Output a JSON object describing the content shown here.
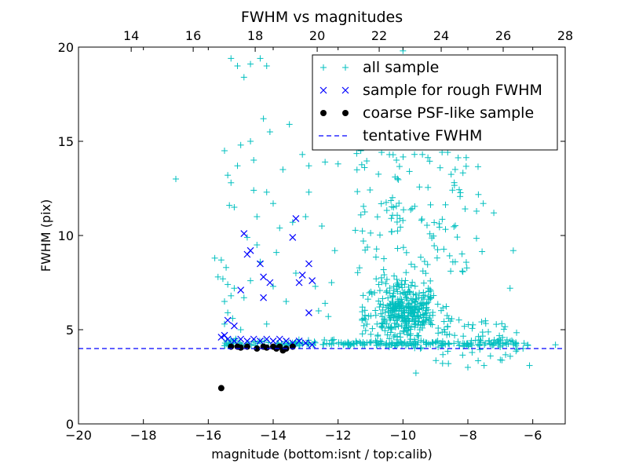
{
  "chart_data": {
    "type": "scatter",
    "title": "FWHM vs magnitudes",
    "xlabel": "magnitude (bottom:isnt / top:calib)",
    "ylabel": "FWHM (pix)",
    "xlim": [
      -20,
      -5
    ],
    "ylim": [
      0,
      20
    ],
    "top_xlim": [
      12.3,
      28
    ],
    "xticks": [
      -20,
      -18,
      -16,
      -14,
      -12,
      -10,
      -8,
      -6
    ],
    "xtick_labels": [
      "−20",
      "−18",
      "−16",
      "−14",
      "−12",
      "−10",
      "−8",
      "−6"
    ],
    "yticks": [
      0,
      5,
      10,
      15,
      20
    ],
    "ytick_labels": [
      "0",
      "5",
      "10",
      "15",
      "20"
    ],
    "top_xticks": [
      14,
      16,
      18,
      20,
      22,
      24,
      26,
      28
    ],
    "top_xtick_labels": [
      "14",
      "16",
      "18",
      "20",
      "22",
      "24",
      "26",
      "28"
    ],
    "grid": false,
    "legend_position": "top-right",
    "colors": {
      "all_sample": "#00BFBF",
      "rough_sample": "#0000FF",
      "psf_sample": "#000000",
      "tentative_line": "#0000FF"
    },
    "series": [
      {
        "name": "all sample",
        "marker": "plus",
        "points": [
          [
            -17.0,
            13.0
          ],
          [
            -15.8,
            8.8
          ],
          [
            -15.7,
            7.8
          ],
          [
            -15.6,
            8.7
          ],
          [
            -15.55,
            7.7
          ],
          [
            -15.5,
            6.5
          ],
          [
            -15.5,
            5.3
          ],
          [
            -15.45,
            8.3
          ],
          [
            -15.4,
            7.4
          ],
          [
            -15.4,
            5.9
          ],
          [
            -15.35,
            11.6
          ],
          [
            -15.3,
            6.8
          ],
          [
            -15.3,
            12.8
          ],
          [
            -15.25,
            5.6
          ],
          [
            -15.2,
            7.2
          ],
          [
            -15.2,
            11.5
          ],
          [
            -15.5,
            14.5
          ],
          [
            -15.4,
            13.2
          ],
          [
            -15.1,
            13.7
          ],
          [
            -15.0,
            5.0
          ],
          [
            -15.0,
            14.8
          ],
          [
            -14.9,
            6.7
          ],
          [
            -14.8,
            9.9
          ],
          [
            -14.7,
            15.0
          ],
          [
            -14.7,
            7.6
          ],
          [
            -14.6,
            14.0
          ],
          [
            -14.6,
            12.4
          ],
          [
            -14.5,
            11.0
          ],
          [
            -14.5,
            9.5
          ],
          [
            -14.4,
            8.6
          ],
          [
            -14.3,
            16.2
          ],
          [
            -14.2,
            5.3
          ],
          [
            -14.2,
            12.3
          ],
          [
            -14.1,
            15.5
          ],
          [
            -14.0,
            7.3
          ],
          [
            -14.0,
            11.7
          ],
          [
            -13.9,
            9.1
          ],
          [
            -13.8,
            10.4
          ],
          [
            -13.7,
            13.5
          ],
          [
            -13.6,
            6.5
          ],
          [
            -13.5,
            15.9
          ],
          [
            -13.4,
            10.7
          ],
          [
            -13.3,
            8.0
          ],
          [
            -13.1,
            14.3
          ],
          [
            -13.0,
            11.0
          ],
          [
            -12.9,
            12.3
          ],
          [
            -12.9,
            13.7
          ],
          [
            -12.7,
            7.3
          ],
          [
            -12.6,
            6.0
          ],
          [
            -12.5,
            10.5
          ],
          [
            -12.4,
            6.4
          ],
          [
            -12.4,
            13.9
          ],
          [
            -12.3,
            5.7
          ],
          [
            -12.2,
            7.5
          ],
          [
            -12.1,
            9.2
          ],
          [
            -12.0,
            13.8
          ],
          [
            -15.3,
            19.4
          ],
          [
            -15.1,
            19.0
          ],
          [
            -14.7,
            19.1
          ],
          [
            -14.9,
            18.4
          ],
          [
            -14.4,
            19.4
          ],
          [
            -14.2,
            19.0
          ],
          [
            -10.0,
            19.8
          ],
          [
            -11.3,
            14.5
          ],
          [
            -10.6,
            15.5
          ],
          [
            -10.2,
            14.0
          ],
          [
            -9.8,
            13.4
          ],
          [
            -9.4,
            14.3
          ],
          [
            -7.2,
            11.2
          ],
          [
            -6.6,
            9.2
          ],
          [
            -6.7,
            7.2
          ],
          [
            -6.1,
            3.1
          ],
          [
            -5.3,
            4.2
          ],
          [
            -6.3,
            4.0
          ],
          [
            -9.6,
            2.7
          ],
          [
            -8.0,
            3.0
          ],
          [
            -7.5,
            3.1
          ],
          [
            -7.0,
            3.4
          ],
          [
            -8.6,
            3.2
          ]
        ]
      },
      {
        "name": "sample for rough FWHM",
        "marker": "cross",
        "points": [
          [
            -15.6,
            4.6
          ],
          [
            -15.5,
            4.7
          ],
          [
            -15.4,
            5.5
          ],
          [
            -15.2,
            5.2
          ],
          [
            -15.0,
            7.1
          ],
          [
            -14.9,
            10.1
          ],
          [
            -14.8,
            9.0
          ],
          [
            -14.7,
            9.2
          ],
          [
            -14.4,
            8.5
          ],
          [
            -14.3,
            7.8
          ],
          [
            -14.3,
            6.7
          ],
          [
            -14.1,
            7.5
          ],
          [
            -13.4,
            9.9
          ],
          [
            -13.3,
            10.9
          ],
          [
            -13.2,
            7.5
          ],
          [
            -13.1,
            7.9
          ],
          [
            -12.9,
            8.5
          ],
          [
            -12.9,
            5.9
          ],
          [
            -12.8,
            7.6
          ],
          [
            -15.4,
            4.5
          ],
          [
            -15.2,
            4.4
          ],
          [
            -15.0,
            4.5
          ],
          [
            -14.8,
            4.4
          ],
          [
            -14.6,
            4.5
          ],
          [
            -14.4,
            4.4
          ],
          [
            -14.2,
            4.5
          ],
          [
            -14.0,
            4.4
          ],
          [
            -13.8,
            4.5
          ],
          [
            -13.6,
            4.4
          ],
          [
            -13.4,
            4.3
          ],
          [
            -13.2,
            4.4
          ],
          [
            -13.0,
            4.3
          ],
          [
            -12.8,
            4.2
          ]
        ]
      },
      {
        "name": "coarse PSF-like sample",
        "marker": "circle",
        "points": [
          [
            -15.6,
            1.9
          ],
          [
            -15.3,
            4.1
          ],
          [
            -15.1,
            4.1
          ],
          [
            -15.0,
            4.05
          ],
          [
            -14.8,
            4.1
          ],
          [
            -14.5,
            4.0
          ],
          [
            -14.3,
            4.1
          ],
          [
            -14.2,
            4.05
          ],
          [
            -14.0,
            4.1
          ],
          [
            -13.9,
            4.0
          ],
          [
            -13.8,
            4.1
          ],
          [
            -13.7,
            3.9
          ],
          [
            -13.6,
            4.0
          ],
          [
            -13.4,
            4.1
          ]
        ]
      }
    ],
    "tentative_fwhm": {
      "name": "tentative FWHM",
      "y": 4.0
    }
  }
}
